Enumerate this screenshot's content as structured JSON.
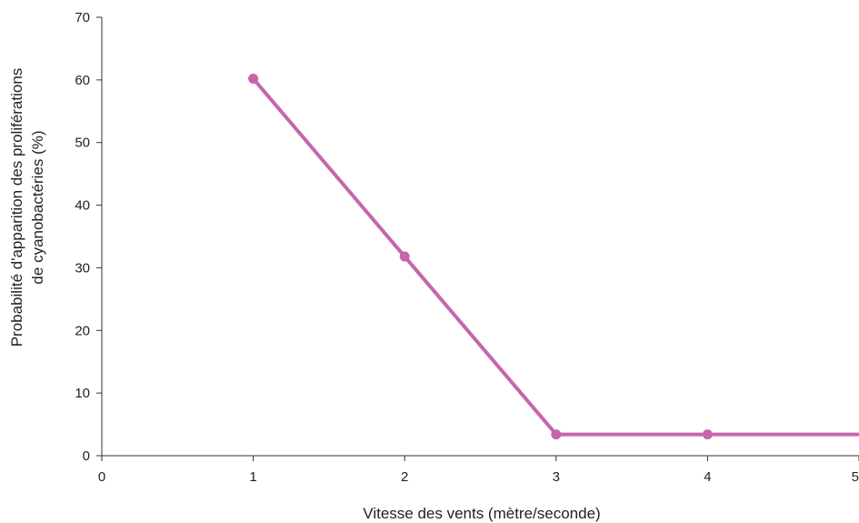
{
  "chart_data": {
    "type": "line",
    "title": "",
    "xlabel": "Vitesse des vents (mètre/seconde)",
    "ylabel_lines": [
      "Probabilité d'apparition des proliférations",
      "de cyanobactéries (%)"
    ],
    "x_ticks": [
      0,
      1,
      2,
      3,
      4,
      5
    ],
    "y_ticks": [
      0,
      10,
      20,
      30,
      40,
      50,
      60,
      70
    ],
    "xlim": [
      0,
      5
    ],
    "ylim": [
      0,
      70
    ],
    "grid": false,
    "series": [
      {
        "color": "#c566ac",
        "points": [
          {
            "x": 1,
            "y": 60.2
          },
          {
            "x": 2,
            "y": 31.8
          },
          {
            "x": 3,
            "y": 3.4
          },
          {
            "x": 4,
            "y": 3.4
          }
        ],
        "line_extends_to_x": 5
      }
    ]
  }
}
